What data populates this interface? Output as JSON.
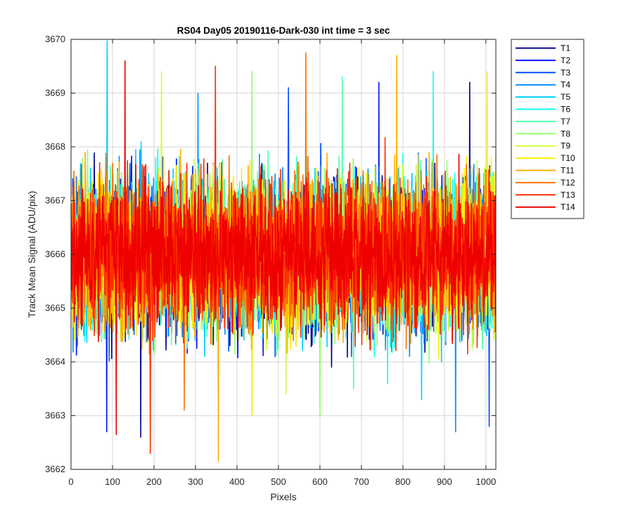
{
  "chart_data": {
    "type": "line",
    "title": "RS04 Day05 20190116-Dark-030 int time = 3 sec",
    "xlabel": "Pixels",
    "ylabel": "Track Mean Signal (ADU/pix)",
    "xlim": [
      0,
      1024
    ],
    "ylim": [
      3662,
      3670
    ],
    "xticks": [
      0,
      100,
      200,
      300,
      400,
      500,
      600,
      700,
      800,
      900,
      1000
    ],
    "yticks": [
      3662,
      3663,
      3664,
      3665,
      3666,
      3667,
      3668,
      3669,
      3670
    ],
    "grid": true,
    "legend_position": "outside-top-right",
    "n_points": 1024,
    "series": [
      {
        "name": "T1",
        "color": "#00008F",
        "mean": 3666.0,
        "amplitude": 1.1,
        "min": 3662.6,
        "max": 3669.2
      },
      {
        "name": "T2",
        "color": "#0010FF",
        "mean": 3666.0,
        "amplitude": 1.1,
        "min": 3662.7,
        "max": 3669.2
      },
      {
        "name": "T3",
        "color": "#0050FF",
        "mean": 3666.0,
        "amplitude": 1.1,
        "min": 3662.8,
        "max": 3669.1
      },
      {
        "name": "T4",
        "color": "#0090FF",
        "mean": 3666.0,
        "amplitude": 1.1,
        "min": 3662.7,
        "max": 3669.0
      },
      {
        "name": "T5",
        "color": "#00CFFF",
        "mean": 3666.0,
        "amplitude": 1.1,
        "min": 3663.3,
        "max": 3669.97
      },
      {
        "name": "T6",
        "color": "#10FFEF",
        "mean": 3666.0,
        "amplitude": 1.1,
        "min": 3663.6,
        "max": 3669.4
      },
      {
        "name": "T7",
        "color": "#50FFAF",
        "mean": 3666.0,
        "amplitude": 1.1,
        "min": 3663.5,
        "max": 3669.3
      },
      {
        "name": "T8",
        "color": "#90FF70",
        "mean": 3666.0,
        "amplitude": 1.1,
        "min": 3663.0,
        "max": 3669.4
      },
      {
        "name": "T9",
        "color": "#CFFF30",
        "mean": 3666.0,
        "amplitude": 1.1,
        "min": 3663.4,
        "max": 3669.4
      },
      {
        "name": "T10",
        "color": "#FFEF00",
        "mean": 3666.0,
        "amplitude": 1.1,
        "min": 3663.0,
        "max": 3669.4
      },
      {
        "name": "T11",
        "color": "#FFB000",
        "mean": 3666.0,
        "amplitude": 1.1,
        "min": 3662.15,
        "max": 3669.7
      },
      {
        "name": "T12",
        "color": "#FF7000",
        "mean": 3666.0,
        "amplitude": 1.1,
        "min": 3663.1,
        "max": 3669.75
      },
      {
        "name": "T13",
        "color": "#FF3000",
        "mean": 3666.0,
        "amplitude": 1.1,
        "min": 3662.3,
        "max": 3669.5
      },
      {
        "name": "T14",
        "color": "#EF0000",
        "mean": 3666.0,
        "amplitude": 1.0,
        "min": 3662.65,
        "max": 3669.6
      }
    ]
  }
}
